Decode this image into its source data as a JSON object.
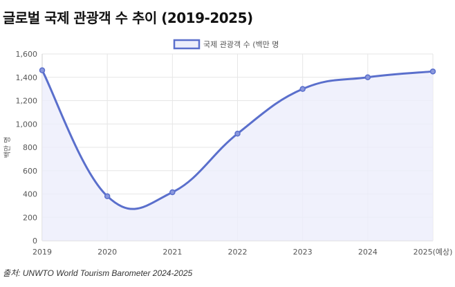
{
  "page": {
    "title": "글로벌 국제 관광객 수 추이 (2019-2025)",
    "source": "출처: UNWTO World Tourism Barometer 2024-2025"
  },
  "chart_data": {
    "type": "area",
    "categories": [
      "2019",
      "2020",
      "2021",
      "2022",
      "2023",
      "2024",
      "2025(예상)"
    ],
    "series": [
      {
        "name": "국제 관광객 수 (백만 명",
        "values": [
          1460,
          381,
          415,
          917,
          1300,
          1400,
          1450
        ],
        "color": "#5a6fcc"
      }
    ],
    "ylabel": "백만 명",
    "xlabel": "",
    "ylim": [
      0,
      1600
    ],
    "yticks": [
      "0",
      "200",
      "400",
      "600",
      "800",
      "1,000",
      "1,200",
      "1,400",
      "1,600"
    ],
    "ytick_values": [
      0,
      200,
      400,
      600,
      800,
      1000,
      1200,
      1400,
      1600
    ],
    "grid": true,
    "legend": "top-center",
    "fill_color": "#eceefb",
    "grid_color": "#e6e6e6"
  }
}
